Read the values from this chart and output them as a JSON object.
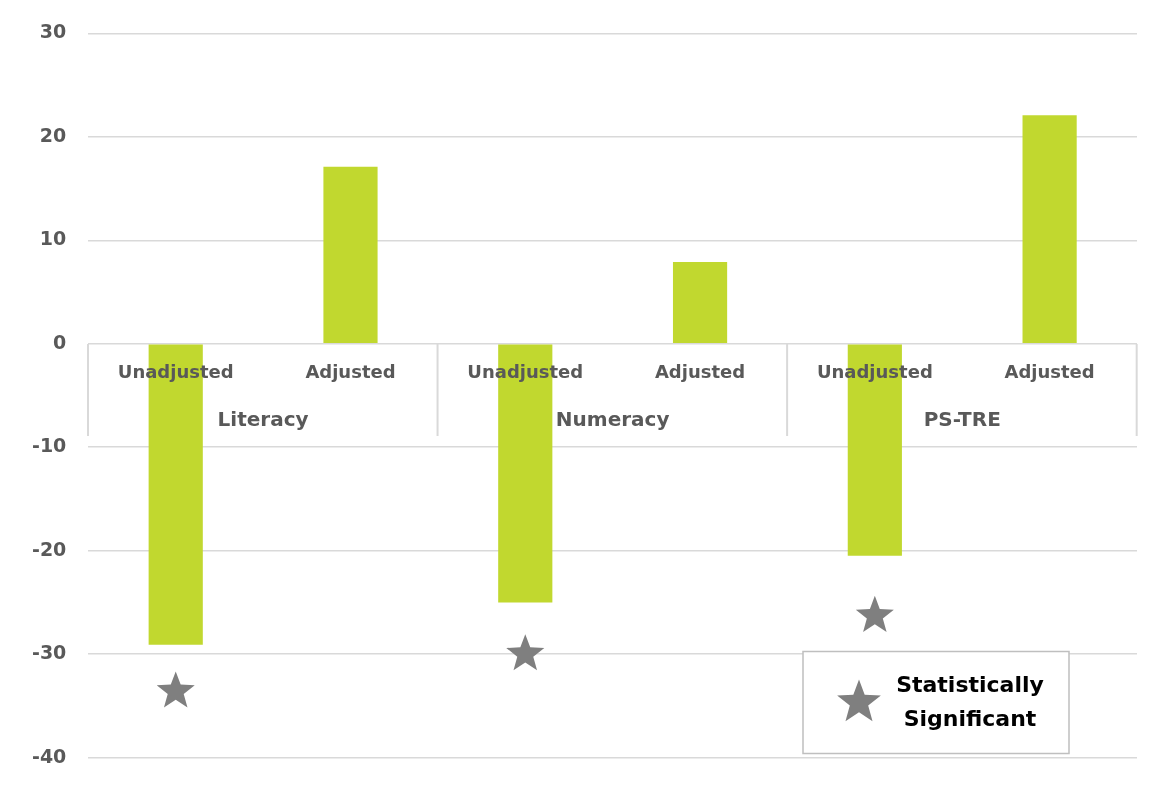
{
  "chart_data": {
    "type": "bar",
    "categories": [
      "Unadjusted",
      "Adjusted",
      "Unadjusted",
      "Adjusted",
      "Unadjusted",
      "Adjusted"
    ],
    "annotations": [
      "Literacy",
      "Numeracy",
      "PS-TRE"
    ],
    "series": [
      {
        "color": "#c1d82f",
        "values": [
          -29.1,
          17.1,
          -25.0,
          7.9,
          -20.5,
          22.1
        ]
      },
      {
        "type": "scatter",
        "name": "Statistically Significant",
        "color": "#7f7f7f",
        "marker": "star",
        "values": [
          -33.6,
          null,
          -30.0,
          null,
          -26.3,
          null
        ]
      }
    ],
    "ylim": [
      -40,
      30
    ],
    "yticks": [
      -40,
      -30,
      -20,
      -10,
      0,
      10,
      20,
      30
    ],
    "grid": "y",
    "legend": "bottom right"
  }
}
